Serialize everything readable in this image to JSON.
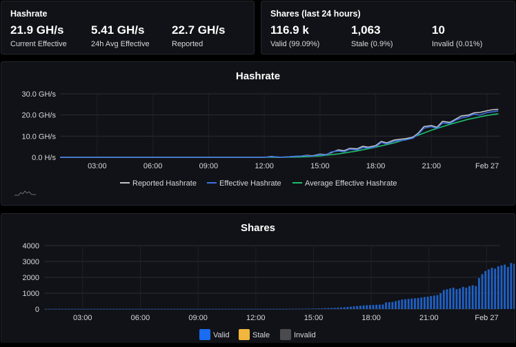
{
  "hashrate_panel": {
    "title": "Hashrate",
    "stats": [
      {
        "value": "21.9 GH/s",
        "label": "Current Effective"
      },
      {
        "value": "5.41 GH/s",
        "label": "24h Avg Effective"
      },
      {
        "value": "22.7 GH/s",
        "label": "Reported"
      }
    ]
  },
  "shares_panel": {
    "title": "Shares (last 24 hours)",
    "stats": [
      {
        "value": "116.9 k",
        "label": "Valid (99.09%)"
      },
      {
        "value": "1,063",
        "label": "Stale (0.9%)"
      },
      {
        "value": "10",
        "label": "Invalid (0.01%)"
      }
    ]
  },
  "colors": {
    "reported": "#c3c4c8",
    "effective": "#3d71e3",
    "average": "#1fbf6c",
    "valid": "#1f60c4",
    "valid_legend": "#1a6cf0",
    "stale": "#f2b63d",
    "invalid": "#4b4b4f"
  },
  "chart_data": [
    {
      "type": "line",
      "title": "Hashrate",
      "y_tick_labels": [
        "0.0 H/s",
        "10.0 GH/s",
        "20.0 GH/s",
        "30.0 GH/s"
      ],
      "ylim": [
        0,
        30
      ],
      "x_tick_labels": [
        "03:00",
        "06:00",
        "09:00",
        "12:00",
        "15:00",
        "18:00",
        "21:00",
        "Feb 27"
      ],
      "x_tick_positions": [
        2,
        5,
        8,
        11,
        14,
        17,
        20,
        23
      ],
      "xlim": [
        0,
        23.7
      ],
      "series": [
        {
          "name": "Reported Hashrate",
          "color_key": "reported",
          "x": [
            0,
            11,
            11.4,
            11.8,
            12.5,
            13,
            13.3,
            13.6,
            14,
            14.3,
            14.6,
            15,
            15.3,
            15.6,
            16,
            16.3,
            16.6,
            17,
            17.3,
            17.6,
            18,
            18.3,
            18.6,
            19,
            19.3,
            19.6,
            20,
            20.3,
            20.6,
            21,
            21.3,
            21.6,
            22,
            22.3,
            22.6,
            23,
            23.3,
            23.6
          ],
          "y": [
            0,
            0,
            0.4,
            0,
            0.3,
            0.6,
            0.9,
            0.7,
            1.5,
            1.2,
            2.2,
            3.5,
            3.1,
            4.2,
            4.0,
            5.2,
            4.8,
            5.5,
            7.5,
            6.8,
            8.2,
            8.5,
            8.8,
            9.5,
            11.5,
            14.5,
            15.0,
            14.2,
            17.0,
            16.5,
            18.0,
            19.5,
            20.0,
            21.0,
            21.2,
            22.0,
            22.5,
            22.7
          ]
        },
        {
          "name": "Effective Hashrate",
          "color_key": "effective",
          "x": [
            0,
            11,
            11.5,
            12,
            12.5,
            13,
            13.3,
            13.6,
            14,
            14.3,
            14.6,
            15,
            15.3,
            15.6,
            16,
            16.3,
            16.6,
            17,
            17.3,
            17.6,
            18,
            18.3,
            18.6,
            19,
            19.3,
            19.6,
            20,
            20.3,
            20.6,
            21,
            21.3,
            21.6,
            22,
            22.3,
            22.6,
            23,
            23.3,
            23.6
          ],
          "y": [
            0,
            0,
            0.3,
            0,
            0.4,
            0.6,
            0.8,
            0.5,
            1.3,
            1.0,
            2.5,
            3.0,
            2.6,
            3.8,
            3.5,
            4.6,
            4.4,
            4.9,
            7.0,
            6.3,
            7.6,
            7.9,
            8.2,
            9.0,
            11.0,
            13.8,
            14.5,
            13.6,
            16.2,
            16.0,
            17.5,
            18.6,
            19.3,
            20.4,
            20.0,
            21.2,
            21.5,
            21.9
          ]
        },
        {
          "name": "Average Effective Hashrate",
          "color_key": "average",
          "x": [
            0,
            12,
            13,
            14,
            15,
            16,
            17,
            18,
            19,
            20,
            21,
            22,
            23,
            23.6
          ],
          "y": [
            0,
            0,
            0.2,
            0.7,
            1.6,
            3.0,
            4.8,
            6.8,
            9.5,
            12.8,
            15.6,
            18.0,
            19.8,
            20.6
          ]
        }
      ]
    },
    {
      "type": "bar",
      "title": "Shares",
      "y_tick_labels": [
        "0",
        "1000",
        "2000",
        "3000",
        "4000"
      ],
      "ylim": [
        0,
        4000
      ],
      "x_tick_labels": [
        "03:00",
        "06:00",
        "09:00",
        "12:00",
        "15:00",
        "18:00",
        "21:00",
        "Feb 27"
      ],
      "x_tick_positions": [
        2,
        5,
        8,
        11,
        14,
        17,
        20,
        23
      ],
      "xlim": [
        0,
        23.7
      ],
      "series": [
        {
          "name": "Valid",
          "color_key": "valid",
          "legend_color_key": "valid_legend",
          "x_start": 0.1,
          "x_step": 0.1667,
          "values": [
            5,
            5,
            5,
            5,
            5,
            5,
            5,
            5,
            5,
            5,
            5,
            5,
            5,
            5,
            5,
            5,
            5,
            5,
            5,
            5,
            5,
            5,
            5,
            5,
            5,
            5,
            5,
            5,
            5,
            5,
            5,
            5,
            5,
            5,
            5,
            5,
            5,
            5,
            5,
            5,
            5,
            5,
            5,
            5,
            5,
            5,
            5,
            5,
            5,
            5,
            5,
            5,
            5,
            5,
            5,
            5,
            5,
            5,
            5,
            5,
            5,
            5,
            5,
            5,
            5,
            5,
            5,
            5,
            5,
            5,
            5,
            5,
            5,
            5,
            5,
            5,
            10,
            12,
            15,
            18,
            20,
            24,
            28,
            32,
            37,
            42,
            48,
            55,
            62,
            70,
            78,
            88,
            100,
            115,
            130,
            150,
            170,
            190,
            210,
            230,
            240,
            250,
            260,
            270,
            280,
            290,
            420,
            430,
            450,
            500,
            550,
            600,
            620,
            640,
            660,
            680,
            700,
            730,
            760,
            780,
            820,
            850,
            880,
            1000,
            1200,
            1250,
            1300,
            1350,
            1250,
            1300,
            1400,
            1350,
            1450,
            1500,
            1450,
            1950,
            2200,
            2400,
            2500,
            2600,
            2550,
            2700,
            2750,
            2800,
            2650,
            2900,
            2850,
            2700,
            3000,
            2950,
            3050,
            3000,
            3100,
            3050,
            2900,
            3150,
            3200,
            3100,
            3250,
            3200,
            3300,
            3050,
            3350,
            3000,
            3300,
            3400,
            3350,
            3050,
            3350
          ]
        },
        {
          "name": "Stale",
          "color_key": "stale",
          "values": []
        },
        {
          "name": "Invalid",
          "color_key": "invalid",
          "values": []
        }
      ]
    }
  ]
}
